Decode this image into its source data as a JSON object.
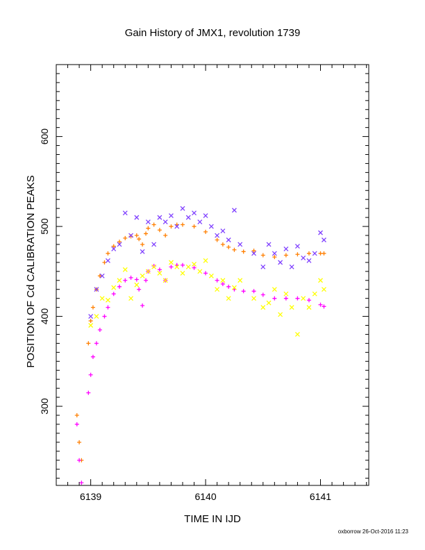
{
  "chart_data": {
    "type": "scatter",
    "title": "Gain History of JMX1, revolution 1739",
    "xlabel": "TIME IN IJD",
    "ylabel": "POSITION OF Cd CALIBRATION PEAKS",
    "xlim": [
      6138.7,
      6141.42
    ],
    "ylim": [
      212,
      680
    ],
    "x_ticks": [
      6139,
      6140,
      6141
    ],
    "x_tick_labels": [
      "6139",
      "6140",
      "6141"
    ],
    "y_ticks": [
      300,
      400,
      500,
      600
    ],
    "y_tick_labels": [
      "300",
      "400",
      "500",
      "600"
    ],
    "grid": false,
    "legend": "none",
    "footer": "oxborrow 26-Oct-2016 11:23",
    "colors": {
      "upper_smooth": "#FF7F00",
      "upper_scatter": "#7F3FFF",
      "lower_smooth": "#FF00FF",
      "lower_scatter": "#FFFF00"
    },
    "series": [
      {
        "marker": "plus",
        "color": "#FF7F00",
        "x": [
          6138.88,
          6138.9,
          6138.92,
          6138.98,
          6139.0,
          6139.02,
          6139.05,
          6139.08,
          6139.12,
          6139.15,
          6139.2,
          6139.25,
          6139.3,
          6139.35,
          6139.4,
          6139.42,
          6139.45,
          6139.48,
          6139.5,
          6139.55,
          6139.6,
          6139.65,
          6139.7,
          6139.75,
          6139.8,
          6139.9,
          6140.0,
          6140.1,
          6140.15,
          6140.2,
          6140.25,
          6140.33,
          6140.42,
          6140.5,
          6140.6,
          6140.7,
          6140.8,
          6140.9,
          6141.0,
          6141.03
        ],
        "y": [
          290,
          260,
          240,
          370,
          395,
          410,
          430,
          445,
          460,
          470,
          478,
          483,
          487,
          489,
          490,
          486,
          480,
          492,
          498,
          502,
          496,
          490,
          500,
          502,
          502,
          500,
          494,
          485,
          480,
          477,
          474,
          472,
          473,
          468,
          466,
          468,
          469,
          470,
          470,
          470
        ]
      },
      {
        "marker": "cross",
        "color": "#7F3FFF",
        "x": [
          6139.0,
          6139.05,
          6139.1,
          6139.15,
          6139.2,
          6139.25,
          6139.3,
          6139.35,
          6139.4,
          6139.45,
          6139.5,
          6139.55,
          6139.6,
          6139.65,
          6139.7,
          6139.75,
          6139.8,
          6139.85,
          6139.9,
          6139.95,
          6140.0,
          6140.05,
          6140.1,
          6140.15,
          6140.2,
          6140.25,
          6140.3,
          6140.42,
          6140.5,
          6140.55,
          6140.6,
          6140.65,
          6140.7,
          6140.75,
          6140.8,
          6140.85,
          6140.9,
          6140.95,
          6141.0,
          6141.03
        ],
        "y": [
          400,
          430,
          445,
          462,
          475,
          480,
          515,
          490,
          510,
          472,
          505,
          480,
          510,
          505,
          512,
          500,
          520,
          510,
          515,
          505,
          512,
          500,
          490,
          495,
          485,
          518,
          480,
          470,
          455,
          480,
          470,
          460,
          475,
          455,
          478,
          465,
          462,
          470,
          493,
          485
        ]
      },
      {
        "marker": "plus",
        "color": "#FF00FF",
        "x": [
          6138.88,
          6138.9,
          6138.92,
          6138.98,
          6139.0,
          6139.02,
          6139.05,
          6139.08,
          6139.12,
          6139.15,
          6139.2,
          6139.25,
          6139.3,
          6139.35,
          6139.4,
          6139.42,
          6139.45,
          6139.48,
          6139.5,
          6139.55,
          6139.6,
          6139.65,
          6139.7,
          6139.75,
          6139.8,
          6139.9,
          6140.0,
          6140.1,
          6140.15,
          6140.2,
          6140.25,
          6140.33,
          6140.42,
          6140.5,
          6140.6,
          6140.7,
          6140.8,
          6140.9,
          6141.0,
          6141.03
        ],
        "y": [
          280,
          240,
          215,
          315,
          335,
          355,
          370,
          385,
          400,
          410,
          425,
          433,
          440,
          443,
          441,
          430,
          412,
          440,
          450,
          456,
          452,
          440,
          455,
          457,
          457,
          454,
          448,
          440,
          436,
          433,
          430,
          428,
          428,
          424,
          420,
          420,
          420,
          418,
          413,
          411
        ]
      },
      {
        "marker": "cross",
        "color": "#FFFF00",
        "x": [
          6139.0,
          6139.05,
          6139.1,
          6139.15,
          6139.2,
          6139.25,
          6139.3,
          6139.35,
          6139.4,
          6139.45,
          6139.5,
          6139.55,
          6139.6,
          6139.65,
          6139.7,
          6139.75,
          6139.8,
          6139.85,
          6139.9,
          6139.95,
          6140.0,
          6140.05,
          6140.1,
          6140.15,
          6140.2,
          6140.25,
          6140.3,
          6140.42,
          6140.5,
          6140.55,
          6140.6,
          6140.65,
          6140.7,
          6140.75,
          6140.8,
          6140.85,
          6140.9,
          6140.95,
          6141.0,
          6141.03
        ],
        "y": [
          390,
          400,
          420,
          418,
          432,
          440,
          452,
          420,
          435,
          445,
          450,
          455,
          448,
          440,
          460,
          455,
          448,
          455,
          458,
          450,
          462,
          445,
          430,
          440,
          420,
          432,
          440,
          420,
          410,
          415,
          430,
          402,
          425,
          410,
          380,
          420,
          410,
          425,
          440,
          430
        ]
      }
    ]
  }
}
